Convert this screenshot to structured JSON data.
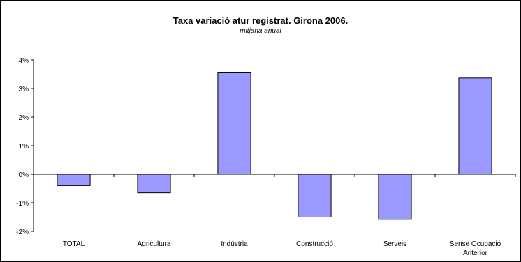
{
  "chart_data": {
    "type": "bar",
    "title": "Taxa variació atur registrat. Girona 2006.",
    "subtitle": "mitjana anual",
    "xlabel": "",
    "ylabel": "",
    "categories": [
      "TOTAL",
      "Agricultura",
      "Indústria",
      "Construcció",
      "Serveis",
      "Sense Ocupació Anterior"
    ],
    "category_lines": [
      [
        "TOTAL"
      ],
      [
        "Agricultura"
      ],
      [
        "Indústria"
      ],
      [
        "Construcció"
      ],
      [
        "Serveis"
      ],
      [
        "Sense Ocupació",
        "Anterior"
      ]
    ],
    "values": [
      -0.4,
      -0.65,
      3.55,
      -1.5,
      -1.58,
      3.37
    ],
    "ylim": [
      -2,
      4
    ],
    "yticks": [
      -2,
      -1,
      0,
      1,
      2,
      3,
      4
    ],
    "ytick_labels": [
      "-2%",
      "-1%",
      "0%",
      "1%",
      "2%",
      "3%",
      "4%"
    ],
    "grid": false,
    "legend": "none",
    "bar_color": "#9999ff"
  }
}
